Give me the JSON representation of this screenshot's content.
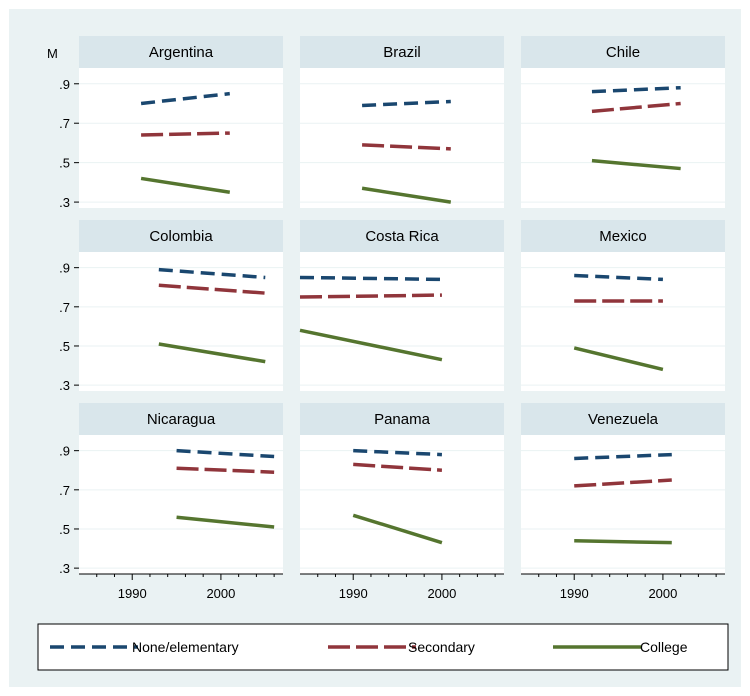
{
  "chart_data": {
    "type": "line",
    "ylabel": "M",
    "y_ticks": [
      ".9",
      ".7",
      ".5",
      ".3"
    ],
    "y_tick_values": [
      0.9,
      0.7,
      0.5,
      0.3
    ],
    "ylim": [
      0.27,
      0.98
    ],
    "xlim": [
      1984,
      2007
    ],
    "x_ticks": [
      "1990",
      "2000"
    ],
    "x_tick_values": [
      1990,
      2000
    ],
    "legend_position": "bottom",
    "series_styles": [
      {
        "name": "None/elementary",
        "color": "#1a476f",
        "dash": "14,7"
      },
      {
        "name": "Secondary",
        "color": "#90353b",
        "dash": "22,6"
      },
      {
        "name": "College",
        "color": "#55752f",
        "dash": ""
      }
    ],
    "panels": [
      {
        "title": "Argentina",
        "series": [
          {
            "name": "None/elementary",
            "x": [
              1991,
              2001
            ],
            "y": [
              0.8,
              0.85
            ]
          },
          {
            "name": "Secondary",
            "x": [
              1991,
              2001
            ],
            "y": [
              0.64,
              0.65
            ]
          },
          {
            "name": "College",
            "x": [
              1991,
              2001
            ],
            "y": [
              0.42,
              0.35
            ]
          }
        ]
      },
      {
        "title": "Brazil",
        "series": [
          {
            "name": "None/elementary",
            "x": [
              1991,
              2001
            ],
            "y": [
              0.79,
              0.81
            ]
          },
          {
            "name": "Secondary",
            "x": [
              1991,
              2001
            ],
            "y": [
              0.59,
              0.57
            ]
          },
          {
            "name": "College",
            "x": [
              1991,
              2001
            ],
            "y": [
              0.37,
              0.3
            ]
          }
        ]
      },
      {
        "title": "Chile",
        "series": [
          {
            "name": "None/elementary",
            "x": [
              1992,
              2002
            ],
            "y": [
              0.86,
              0.88
            ]
          },
          {
            "name": "Secondary",
            "x": [
              1992,
              2002
            ],
            "y": [
              0.76,
              0.8
            ]
          },
          {
            "name": "College",
            "x": [
              1992,
              2002
            ],
            "y": [
              0.51,
              0.47
            ]
          }
        ]
      },
      {
        "title": "Colombia",
        "series": [
          {
            "name": "None/elementary",
            "x": [
              1993,
              2005
            ],
            "y": [
              0.89,
              0.85
            ]
          },
          {
            "name": "Secondary",
            "x": [
              1993,
              2005
            ],
            "y": [
              0.81,
              0.77
            ]
          },
          {
            "name": "College",
            "x": [
              1993,
              2005
            ],
            "y": [
              0.51,
              0.42
            ]
          }
        ]
      },
      {
        "title": "Costa Rica",
        "series": [
          {
            "name": "None/elementary",
            "x": [
              1984,
              2000
            ],
            "y": [
              0.85,
              0.84
            ]
          },
          {
            "name": "Secondary",
            "x": [
              1984,
              2000
            ],
            "y": [
              0.75,
              0.76
            ]
          },
          {
            "name": "College",
            "x": [
              1984,
              2000
            ],
            "y": [
              0.58,
              0.43
            ]
          }
        ]
      },
      {
        "title": "Mexico",
        "series": [
          {
            "name": "None/elementary",
            "x": [
              1990,
              2000
            ],
            "y": [
              0.86,
              0.84
            ]
          },
          {
            "name": "Secondary",
            "x": [
              1990,
              2000
            ],
            "y": [
              0.73,
              0.73
            ]
          },
          {
            "name": "College",
            "x": [
              1990,
              2000
            ],
            "y": [
              0.49,
              0.38
            ]
          }
        ]
      },
      {
        "title": "Nicaragua",
        "series": [
          {
            "name": "None/elementary",
            "x": [
              1995,
              2006
            ],
            "y": [
              0.9,
              0.87
            ]
          },
          {
            "name": "Secondary",
            "x": [
              1995,
              2006
            ],
            "y": [
              0.81,
              0.79
            ]
          },
          {
            "name": "College",
            "x": [
              1995,
              2006
            ],
            "y": [
              0.56,
              0.51
            ]
          }
        ]
      },
      {
        "title": "Panama",
        "series": [
          {
            "name": "None/elementary",
            "x": [
              1990,
              2000
            ],
            "y": [
              0.9,
              0.88
            ]
          },
          {
            "name": "Secondary",
            "x": [
              1990,
              2000
            ],
            "y": [
              0.83,
              0.8
            ]
          },
          {
            "name": "College",
            "x": [
              1990,
              2000
            ],
            "y": [
              0.57,
              0.43
            ]
          }
        ]
      },
      {
        "title": "Venezuela",
        "series": [
          {
            "name": "None/elementary",
            "x": [
              1990,
              2001
            ],
            "y": [
              0.86,
              0.88
            ]
          },
          {
            "name": "Secondary",
            "x": [
              1990,
              2001
            ],
            "y": [
              0.72,
              0.75
            ]
          },
          {
            "name": "College",
            "x": [
              1990,
              2001
            ],
            "y": [
              0.44,
              0.43
            ]
          }
        ]
      }
    ],
    "legend": [
      "None/elementary",
      "Secondary",
      "College"
    ]
  }
}
